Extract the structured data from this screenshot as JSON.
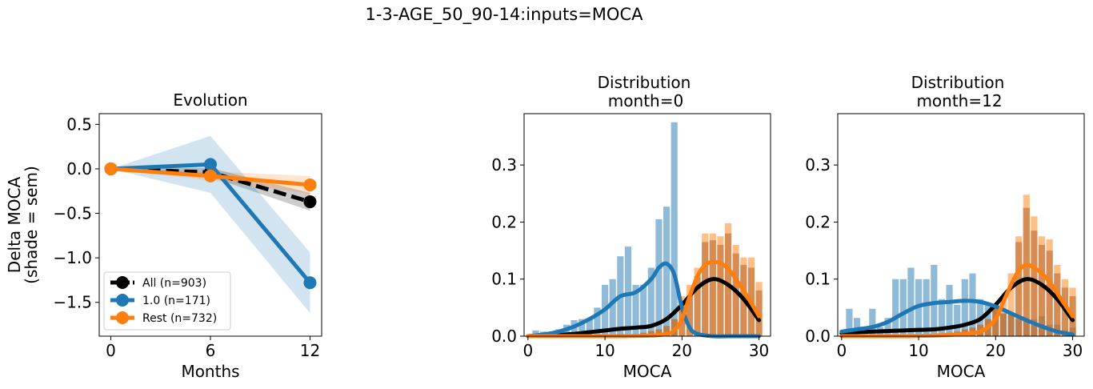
{
  "suptitle": "1-3-AGE_50_90-14:inputs=MOCA",
  "colors": {
    "all": "#000000",
    "group": "#1f77b4",
    "rest": "#ff7f0e"
  },
  "chart_data": [
    {
      "type": "line",
      "title": "Evolution",
      "xlabel": "Months",
      "ylabel_line1": "Delta MOCA",
      "ylabel_line2": "(shade = sem)",
      "xlim": [
        -0.7,
        12.7
      ],
      "ylim": [
        -1.88,
        0.62
      ],
      "xticks": [
        0,
        6,
        12
      ],
      "xtick_labels": [
        "0",
        "6",
        "12"
      ],
      "yticks": [
        0.5,
        0.0,
        -0.5,
        -1.0,
        -1.5
      ],
      "ytick_labels": [
        "0.5",
        "0.0",
        "−0.5",
        "−1.0",
        "−1.5"
      ],
      "x": [
        0,
        6,
        12
      ],
      "series": [
        {
          "name": "All (n=903)",
          "color": "#000000",
          "dashed": true,
          "values": [
            0.0,
            -0.04,
            -0.37
          ],
          "lower": [
            0.0,
            -0.09,
            -0.47
          ],
          "upper": [
            0.0,
            0.01,
            -0.27
          ]
        },
        {
          "name": "1.0 (n=171)",
          "color": "#1f77b4",
          "dashed": false,
          "values": [
            0.0,
            0.05,
            -1.28
          ],
          "lower": [
            0.0,
            -0.27,
            -1.62
          ],
          "upper": [
            0.0,
            0.37,
            -0.94
          ]
        },
        {
          "name": "Rest (n=732)",
          "color": "#ff7f0e",
          "dashed": false,
          "values": [
            0.0,
            -0.08,
            -0.18
          ],
          "lower": [
            0.0,
            -0.13,
            -0.28
          ],
          "upper": [
            0.0,
            -0.03,
            -0.08
          ]
        }
      ],
      "legend_position": "lower-left"
    },
    {
      "type": "bar",
      "title_line1": "Distribution",
      "title_line2": "month=0",
      "xlabel": "MOCA",
      "xlim": [
        -0.5,
        31.5
      ],
      "ylim": [
        0,
        0.39
      ],
      "xticks": [
        0,
        10,
        20,
        30
      ],
      "xtick_labels": [
        "0",
        "10",
        "20",
        "30"
      ],
      "yticks": [
        0.0,
        0.1,
        0.2,
        0.3
      ],
      "ytick_labels": [
        "0.0",
        "0.1",
        "0.2",
        "0.3"
      ],
      "bin_width": 0.85,
      "hist_group": {
        "name": "1.0",
        "color": "#1f77b4",
        "x": [
          1,
          2,
          3,
          4,
          5,
          6,
          7,
          8,
          9,
          10,
          11,
          12,
          13,
          14,
          15,
          16,
          17,
          18,
          19
        ],
        "values": [
          0.01,
          0.008,
          0.004,
          0.012,
          0.02,
          0.028,
          0.03,
          0.03,
          0.05,
          0.09,
          0.1,
          0.14,
          0.157,
          0.09,
          0.09,
          0.12,
          0.205,
          0.227,
          0.375
        ]
      },
      "hist_rest": {
        "name": "Rest",
        "color": "#ff7f0e",
        "x": [
          10,
          12,
          13,
          14,
          15,
          16,
          17,
          18,
          19,
          20,
          21,
          22,
          23,
          24,
          25,
          26,
          27,
          28,
          29,
          30
        ],
        "values": [
          0.002,
          0.004,
          0.003,
          0.004,
          0.006,
          0.009,
          0.012,
          0.018,
          0.03,
          0.07,
          0.09,
          0.12,
          0.18,
          0.18,
          0.175,
          0.198,
          0.16,
          0.138,
          0.138,
          0.095
        ]
      },
      "hist_overlap": {
        "x": [
          10,
          12,
          13,
          14,
          15,
          16,
          17,
          18,
          19,
          20,
          21,
          22,
          23,
          24,
          25,
          26,
          27,
          28,
          29,
          30
        ],
        "values": [
          0.002,
          0.004,
          0.003,
          0.004,
          0.006,
          0.009,
          0.012,
          0.018,
          0.03,
          0.05,
          0.07,
          0.105,
          0.165,
          0.168,
          0.16,
          0.18,
          0.145,
          0.125,
          0.12,
          0.08
        ]
      },
      "kde": [
        {
          "name": "All",
          "color": "#000000",
          "x": [
            0,
            2,
            4,
            6,
            8,
            10,
            12,
            14,
            16,
            18,
            20,
            22,
            24,
            26,
            28,
            30
          ],
          "values": [
            0.0,
            0.001,
            0.002,
            0.004,
            0.007,
            0.01,
            0.013,
            0.015,
            0.018,
            0.03,
            0.055,
            0.085,
            0.1,
            0.09,
            0.065,
            0.028
          ]
        },
        {
          "name": "1.0",
          "color": "#1f77b4",
          "x": [
            0,
            2,
            4,
            6,
            8,
            10,
            12,
            14,
            16,
            17,
            18,
            19,
            20,
            21,
            22,
            24,
            26,
            28,
            30
          ],
          "values": [
            0.0,
            0.003,
            0.008,
            0.017,
            0.03,
            0.047,
            0.07,
            0.077,
            0.1,
            0.12,
            0.127,
            0.108,
            0.05,
            0.015,
            0.004,
            0.0,
            0.0,
            0.0,
            0.0
          ]
        },
        {
          "name": "Rest",
          "color": "#ff7f0e",
          "x": [
            0,
            4,
            8,
            12,
            16,
            18,
            19,
            20,
            21,
            22,
            23,
            24,
            25,
            26,
            27,
            28,
            29,
            30
          ],
          "values": [
            0.0,
            0.0,
            0.0,
            0.0,
            0.001,
            0.004,
            0.01,
            0.03,
            0.07,
            0.105,
            0.125,
            0.13,
            0.128,
            0.118,
            0.1,
            0.08,
            0.058,
            0.035
          ]
        }
      ]
    },
    {
      "type": "bar",
      "title_line1": "Distribution",
      "title_line2": "month=12",
      "xlabel": "MOCA",
      "xlim": [
        -0.5,
        31.5
      ],
      "ylim": [
        0,
        0.39
      ],
      "xticks": [
        0,
        10,
        20,
        30
      ],
      "xtick_labels": [
        "0",
        "10",
        "20",
        "30"
      ],
      "yticks": [
        0.0,
        0.1,
        0.2,
        0.3
      ],
      "ytick_labels": [
        "0.0",
        "0.1",
        "0.2",
        "0.3"
      ],
      "bin_width": 0.85,
      "hist_group": {
        "name": "1.0",
        "color": "#1f77b4",
        "x": [
          1,
          2,
          3,
          4,
          5,
          6,
          7,
          8,
          9,
          10,
          11,
          12,
          13,
          14,
          15,
          16,
          17,
          18,
          19,
          20,
          21,
          22,
          23,
          24,
          25,
          26,
          27,
          28,
          29,
          30
        ],
        "values": [
          0.048,
          0.032,
          0.016,
          0.048,
          0.016,
          0.032,
          0.1,
          0.1,
          0.12,
          0.1,
          0.1,
          0.125,
          0.065,
          0.09,
          0.055,
          0.1,
          0.11,
          0.065,
          0.055,
          0.055,
          0.04,
          0.04,
          0.03,
          0.03,
          0.03,
          0.035,
          0.02,
          0.02,
          0.01,
          0.015
        ]
      },
      "hist_rest": {
        "name": "Rest",
        "color": "#ff7f0e",
        "x": [
          10,
          12,
          13,
          14,
          15,
          16,
          17,
          18,
          19,
          20,
          21,
          22,
          23,
          24,
          25,
          26,
          27,
          28,
          29,
          30
        ],
        "values": [
          0.002,
          0.004,
          0.004,
          0.006,
          0.008,
          0.012,
          0.015,
          0.02,
          0.03,
          0.055,
          0.07,
          0.11,
          0.175,
          0.248,
          0.21,
          0.175,
          0.17,
          0.125,
          0.1,
          0.085
        ]
      },
      "hist_overlap": {
        "x": [
          10,
          12,
          13,
          14,
          15,
          16,
          17,
          18,
          19,
          20,
          21,
          22,
          23,
          24,
          25,
          26,
          27,
          28,
          29,
          30
        ],
        "values": [
          0.002,
          0.004,
          0.004,
          0.006,
          0.008,
          0.012,
          0.015,
          0.02,
          0.03,
          0.05,
          0.04,
          0.04,
          0.165,
          0.225,
          0.185,
          0.16,
          0.15,
          0.11,
          0.085,
          0.07
        ]
      },
      "kde": [
        {
          "name": "All",
          "color": "#000000",
          "x": [
            0,
            2,
            4,
            6,
            8,
            10,
            12,
            14,
            16,
            18,
            20,
            22,
            24,
            26,
            28,
            30
          ],
          "values": [
            0.005,
            0.007,
            0.008,
            0.009,
            0.01,
            0.011,
            0.012,
            0.015,
            0.02,
            0.03,
            0.055,
            0.085,
            0.1,
            0.09,
            0.065,
            0.028
          ]
        },
        {
          "name": "1.0",
          "color": "#1f77b4",
          "x": [
            0,
            2,
            4,
            6,
            8,
            10,
            12,
            14,
            16,
            18,
            20,
            22,
            24,
            26,
            28,
            30
          ],
          "values": [
            0.008,
            0.012,
            0.016,
            0.025,
            0.04,
            0.053,
            0.058,
            0.06,
            0.062,
            0.06,
            0.052,
            0.04,
            0.028,
            0.017,
            0.008,
            0.003
          ]
        },
        {
          "name": "Rest",
          "color": "#ff7f0e",
          "x": [
            0,
            4,
            8,
            12,
            16,
            18,
            19,
            20,
            21,
            22,
            23,
            24,
            25,
            26,
            27,
            28,
            29,
            30
          ],
          "values": [
            0.0,
            0.0,
            0.0,
            0.001,
            0.004,
            0.008,
            0.016,
            0.03,
            0.06,
            0.09,
            0.115,
            0.125,
            0.12,
            0.11,
            0.095,
            0.075,
            0.055,
            0.035
          ]
        }
      ]
    }
  ]
}
